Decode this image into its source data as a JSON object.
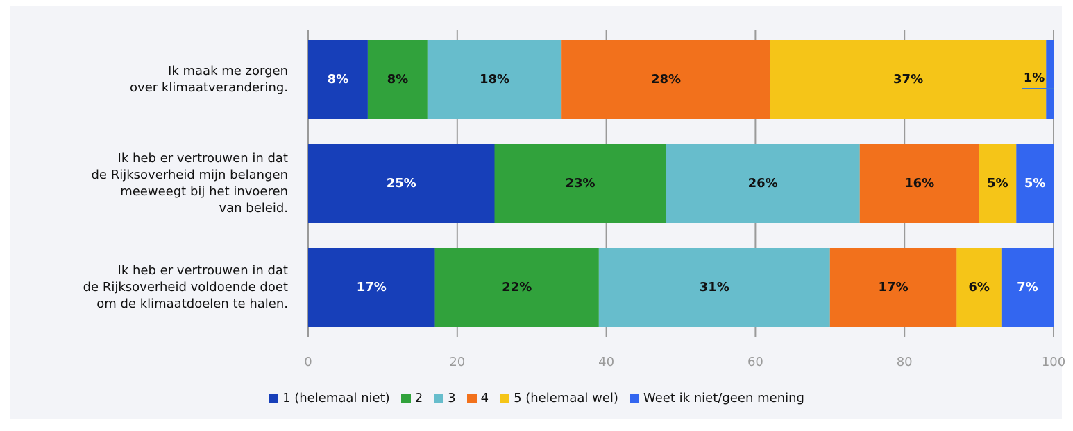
{
  "chart_data": {
    "type": "stacked-bar-horizontal",
    "categories": [
      "Ik maak me zorgen\nover klimaatverandering.",
      "Ik heb er vertrouwen in dat\nde Rijksoverheid mijn belangen\nmeeweegt bij het invoeren\nvan beleid.",
      "Ik heb er vertrouwen in dat\nde Rijksoverheid voldoende doet\nom de klimaatdoelen te halen."
    ],
    "series": [
      {
        "name": "1 (helemaal niet)",
        "color": "#173fb9",
        "values": [
          8,
          25,
          17
        ],
        "value_labels": [
          "8%",
          "25%",
          "17%"
        ]
      },
      {
        "name": "2",
        "color": "#31a23c",
        "values": [
          8,
          23,
          22
        ],
        "value_labels": [
          "8%",
          "23%",
          "22%"
        ]
      },
      {
        "name": "3",
        "color": "#67bdcc",
        "values": [
          18,
          26,
          31
        ],
        "value_labels": [
          "18%",
          "26%",
          "31%"
        ]
      },
      {
        "name": "4",
        "color": "#f2711c",
        "values": [
          28,
          16,
          17
        ],
        "value_labels": [
          "28%",
          "16%",
          "17%"
        ]
      },
      {
        "name": "5 (helemaal wel)",
        "color": "#f5c518",
        "values": [
          37,
          5,
          6
        ],
        "value_labels": [
          "37%",
          "5%",
          "6%"
        ]
      },
      {
        "name": "Weet ik niet/geen mening",
        "color": "#3366f0",
        "values": [
          1,
          5,
          7
        ],
        "value_labels": [
          "1%",
          "5%",
          "7%"
        ]
      }
    ],
    "xlim": [
      0,
      100
    ],
    "xticks": [
      0,
      20,
      40,
      60,
      80,
      100
    ],
    "grid": true
  }
}
